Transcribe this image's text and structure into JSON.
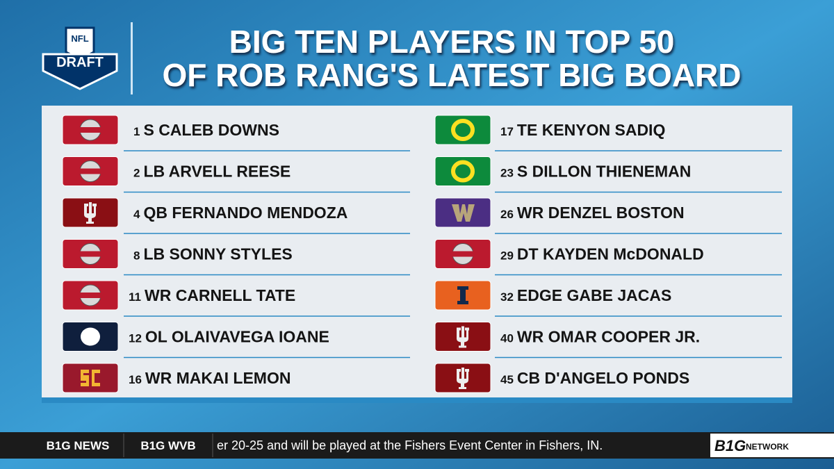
{
  "logo": {
    "shield": "NFL",
    "banner": "DRAFT"
  },
  "title": [
    "BIG TEN PLAYERS IN TOP 50",
    "OF ROB RANG'S LATEST BIG BOARD"
  ],
  "columns": [
    [
      {
        "rank": 1,
        "name": "S CALEB DOWNS"
      },
      {
        "rank": 2,
        "name": "LB ARVELL REESE"
      },
      {
        "rank": 4,
        "name": "QB FERNANDO MENDOZA"
      },
      {
        "rank": 8,
        "name": "LB SONNY STYLES"
      },
      {
        "rank": 11,
        "name": "WR CARNELL TATE"
      },
      {
        "rank": 12,
        "name": "OL OLAIVAVEGA IOANE"
      },
      {
        "rank": 16,
        "name": "WR MAKAI LEMON"
      }
    ],
    [
      {
        "rank": 17,
        "name": "TE KENYON SADIQ"
      },
      {
        "rank": 23,
        "name": "S DILLON THIENEMAN"
      },
      {
        "rank": 26,
        "name": "WR DENZEL BOSTON"
      },
      {
        "rank": 29,
        "name": "DT KAYDEN McDONALD"
      },
      {
        "rank": 32,
        "name": "EDGE GABE JACAS"
      },
      {
        "rank": 40,
        "name": "WR OMAR COOPER JR."
      },
      {
        "rank": 45,
        "name": "CB D'ANGELO PONDS"
      }
    ]
  ],
  "ticker": {
    "tabs": [
      "B1G NEWS",
      "B1G WVB"
    ],
    "text": "er 20-25 and will be played at the Fishers Event Center in Fishers, IN.",
    "network": {
      "mark": "B1G",
      "word": "NETWORK"
    }
  }
}
